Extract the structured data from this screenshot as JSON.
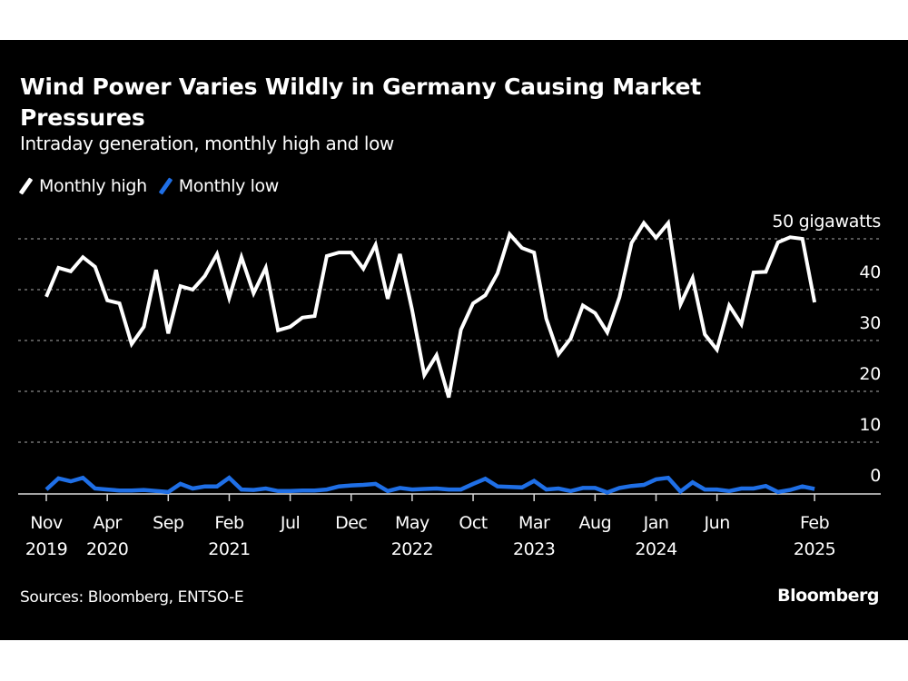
{
  "header": {
    "title": "Wind Power Varies Wildly in Germany Causing Market Pressures",
    "subtitle": "Intraday generation, monthly high and low"
  },
  "legend": [
    {
      "label": "Monthly high",
      "color": "#ffffff"
    },
    {
      "label": "Monthly low",
      "color": "#1f6fe6"
    }
  ],
  "footer": {
    "source": "Sources: Bloomberg, ENTSO-E",
    "logo": "Bloomberg"
  },
  "chart_data": {
    "type": "line",
    "title": "Wind Power Varies Wildly in Germany Causing Market Pressures",
    "subtitle": "Intraday generation, monthly high and low",
    "xlabel": "",
    "ylabel": "gigawatts",
    "y_unit_label": "50 gigawatts",
    "ylim": [
      0,
      50
    ],
    "y_ticks": [
      0,
      10,
      20,
      30,
      40,
      50
    ],
    "y_tick_labels": [
      "0",
      "10",
      "20",
      "30",
      "40",
      "50 gigawatts"
    ],
    "grid": "horizontal dotted",
    "y_axis_side": "right",
    "legend_position": "top-left",
    "x_start": "2019-11",
    "x_end": "2025-02",
    "x_tick_labels": [
      {
        "month_index": 0,
        "line1": "Nov",
        "line2": "2019"
      },
      {
        "month_index": 5,
        "line1": "Apr",
        "line2": "2020"
      },
      {
        "month_index": 10,
        "line1": "Sep",
        "line2": ""
      },
      {
        "month_index": 15,
        "line1": "Feb",
        "line2": "2021"
      },
      {
        "month_index": 20,
        "line1": "Jul",
        "line2": ""
      },
      {
        "month_index": 25,
        "line1": "Dec",
        "line2": ""
      },
      {
        "month_index": 30,
        "line1": "May",
        "line2": "2022"
      },
      {
        "month_index": 35,
        "line1": "Oct",
        "line2": ""
      },
      {
        "month_index": 40,
        "line1": "Mar",
        "line2": "2023"
      },
      {
        "month_index": 45,
        "line1": "Aug",
        "line2": ""
      },
      {
        "month_index": 50,
        "line1": "Jan",
        "line2": "2024"
      },
      {
        "month_index": 55,
        "line1": "Jun",
        "line2": ""
      },
      {
        "month_index": 63,
        "line1": "Feb",
        "line2": "2025"
      }
    ],
    "x": [
      "2019-11",
      "2019-12",
      "2020-01",
      "2020-02",
      "2020-03",
      "2020-04",
      "2020-05",
      "2020-06",
      "2020-07",
      "2020-08",
      "2020-09",
      "2020-10",
      "2020-11",
      "2020-12",
      "2021-01",
      "2021-02",
      "2021-03",
      "2021-04",
      "2021-05",
      "2021-06",
      "2021-07",
      "2021-08",
      "2021-09",
      "2021-10",
      "2021-11",
      "2021-12",
      "2022-01",
      "2022-02",
      "2022-03",
      "2022-04",
      "2022-05",
      "2022-06",
      "2022-07",
      "2022-08",
      "2022-09",
      "2022-10",
      "2022-11",
      "2022-12",
      "2023-01",
      "2023-02",
      "2023-03",
      "2023-04",
      "2023-05",
      "2023-06",
      "2023-07",
      "2023-08",
      "2023-09",
      "2023-10",
      "2023-11",
      "2023-12",
      "2024-01",
      "2024-02",
      "2024-03",
      "2024-04",
      "2024-05",
      "2024-06",
      "2024-07",
      "2024-08",
      "2024-09",
      "2024-10",
      "2024-11",
      "2024-12",
      "2025-01",
      "2025-02"
    ],
    "series": [
      {
        "name": "Monthly high",
        "color": "#ffffff",
        "values": [
          38.6,
          44.3,
          43.6,
          46.4,
          44.5,
          37.9,
          37.3,
          29.3,
          32.7,
          43.9,
          31.4,
          40.7,
          40.0,
          42.7,
          47.0,
          38.4,
          46.4,
          39.3,
          44.3,
          32.0,
          32.7,
          34.5,
          34.8,
          46.6,
          47.3,
          47.3,
          44.1,
          48.8,
          38.2,
          47.0,
          36.0,
          23.2,
          27.1,
          18.8,
          32.1,
          37.3,
          38.9,
          43.2,
          50.9,
          48.2,
          47.3,
          34.3,
          27.3,
          30.4,
          36.9,
          35.4,
          31.6,
          38.5,
          49.2,
          53.1,
          50.2,
          53.1,
          37.1,
          42.3,
          31.2,
          28.2,
          36.9,
          33.2,
          43.4,
          43.5,
          49.3,
          50.3,
          50.0,
          37.5
        ]
      },
      {
        "name": "Monthly low",
        "color": "#1f6fe6",
        "values": [
          0.7,
          2.9,
          2.3,
          3.0,
          0.9,
          0.7,
          0.5,
          0.5,
          0.6,
          0.4,
          0.2,
          1.8,
          0.9,
          1.3,
          1.3,
          3.0,
          0.7,
          0.6,
          0.9,
          0.4,
          0.4,
          0.5,
          0.5,
          0.7,
          1.3,
          1.5,
          1.6,
          1.8,
          0.4,
          1.0,
          0.7,
          0.8,
          0.9,
          0.7,
          0.7,
          1.8,
          2.8,
          1.3,
          1.2,
          1.1,
          2.4,
          0.7,
          0.9,
          0.4,
          1.0,
          1.0,
          0.1,
          1.0,
          1.4,
          1.6,
          2.7,
          3.0,
          0.3,
          2.1,
          0.7,
          0.7,
          0.4,
          0.9,
          0.9,
          1.4,
          0.2,
          0.6,
          1.3,
          0.8
        ]
      }
    ]
  }
}
